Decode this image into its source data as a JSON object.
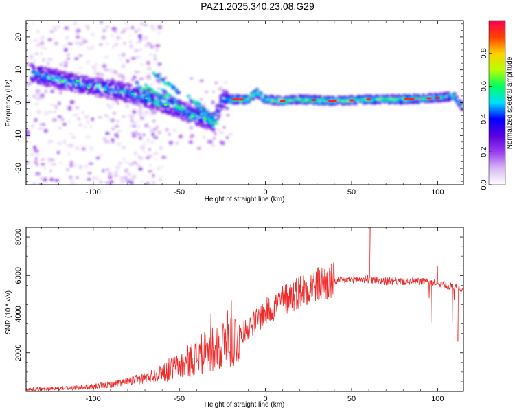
{
  "figure": {
    "title": "PAZ1.2025.340.23.08.G29"
  },
  "chart_data": [
    {
      "type": "heatmap",
      "title": "PAZ1.2025.340.23.08.G29",
      "xlabel": "Height of straight line (km)",
      "ylabel": "Frequency (Hz)",
      "xlim": [
        -139,
        115
      ],
      "ylim": [
        -25,
        25
      ],
      "xticks": [
        -100,
        -50,
        0,
        50,
        100
      ],
      "yticks": [
        -20,
        -10,
        0,
        10,
        20
      ],
      "colorbar": {
        "label": "Normalized spectral amplitude",
        "range": [
          0,
          1
        ],
        "ticks": [
          "0.0",
          "0.2",
          "0.4",
          "0.6",
          "0.8"
        ],
        "stops": [
          "#ffffff",
          "#d8b8f4",
          "#9a3cf0",
          "#5a00e0",
          "#0000ff",
          "#00e0ff",
          "#00ff60",
          "#b8ff00",
          "#ffd000",
          "#ff4000",
          "#ff0050"
        ]
      },
      "ridge": {
        "x": [
          -135,
          -120,
          -100,
          -80,
          -70,
          -60,
          -50,
          -40,
          -30,
          -25,
          -20,
          -10,
          -5,
          0,
          10,
          20,
          40,
          60,
          80,
          100,
          110,
          114
        ],
        "freq": [
          9,
          7,
          5,
          3,
          1.5,
          0,
          -2,
          -4,
          -6,
          1,
          1,
          1,
          3,
          1,
          0.5,
          1,
          0.5,
          1,
          1,
          1.5,
          2,
          -1
        ]
      }
    },
    {
      "type": "line",
      "xlabel": "Height of straight line (km)",
      "ylabel": "SNR (10 * v/v)",
      "xlim": [
        -139,
        115
      ],
      "ylim": [
        0,
        8500
      ],
      "xticks": [
        -100,
        -50,
        0,
        50,
        100
      ],
      "yticks": [
        2000,
        4000,
        6000,
        8000
      ],
      "series": [
        {
          "name": "SNR",
          "color": "#ee2a2a",
          "x": [
            -139,
            -120,
            -100,
            -90,
            -80,
            -70,
            -60,
            -50,
            -40,
            -30,
            -25,
            -20,
            -15,
            -10,
            -5,
            0,
            10,
            20,
            30,
            40,
            50,
            60,
            70,
            80,
            90,
            100,
            110,
            115
          ],
          "y": [
            100,
            150,
            250,
            350,
            500,
            700,
            1000,
            1300,
            1800,
            2200,
            2400,
            2600,
            2900,
            3300,
            3700,
            4100,
            4700,
            5200,
            5500,
            5700,
            5800,
            5800,
            5700,
            5700,
            5700,
            5600,
            5400,
            5300
          ]
        }
      ]
    }
  ]
}
